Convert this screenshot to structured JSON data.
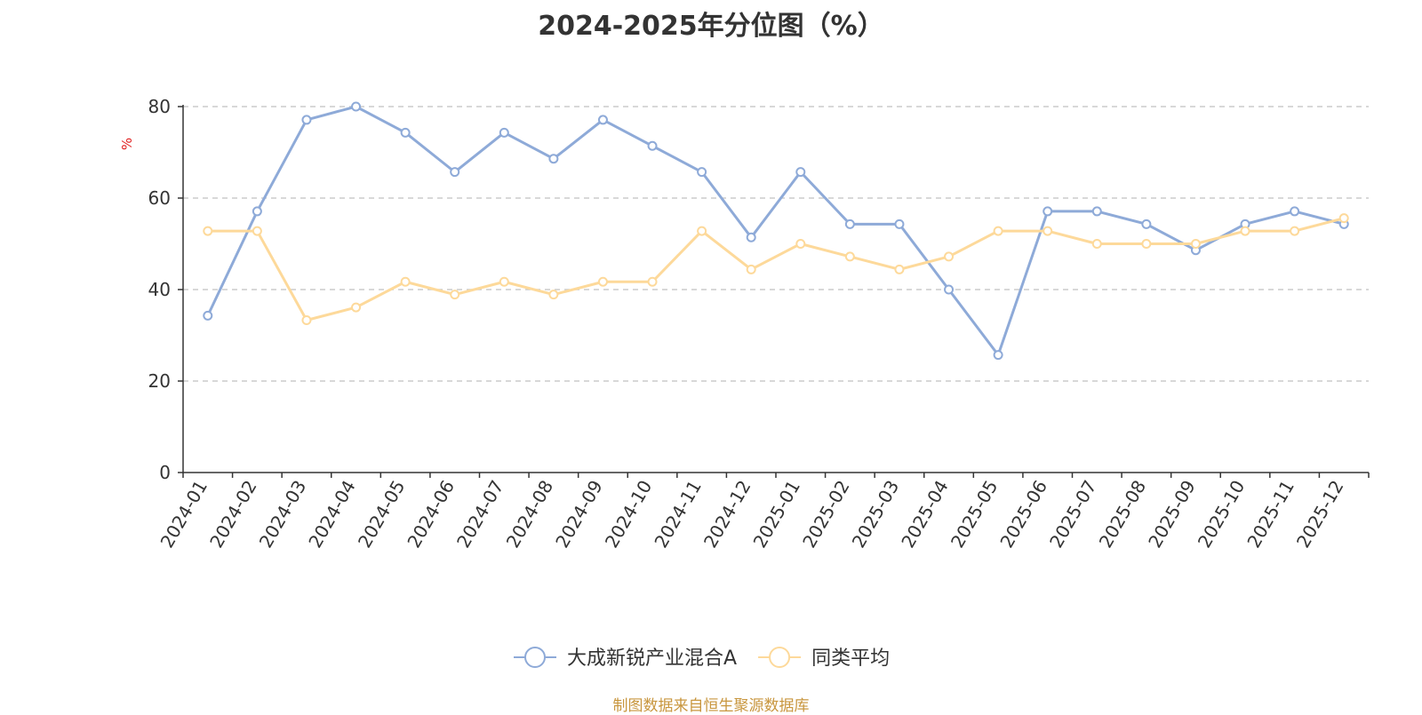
{
  "chart_data": {
    "type": "line",
    "title": "2024-2025年分位图（%）",
    "ylabel": "%",
    "ylim": [
      0,
      80
    ],
    "yticks": [
      0,
      20,
      40,
      60,
      80
    ],
    "grid": true,
    "legend_position": "bottom-center",
    "categories": [
      "2024-01",
      "2024-02",
      "2024-03",
      "2024-04",
      "2024-05",
      "2024-06",
      "2024-07",
      "2024-08",
      "2024-09",
      "2024-10",
      "2024-11",
      "2024-12",
      "2025-01",
      "2025-02",
      "2025-03",
      "2025-04",
      "2025-05",
      "2025-06",
      "2025-07",
      "2025-08",
      "2025-09",
      "2025-10",
      "2025-11",
      "2025-12"
    ],
    "series": [
      {
        "name": "大成新锐产业混合A",
        "color": "#8eaad8",
        "values": [
          34.3,
          57.1,
          77.1,
          80.0,
          74.3,
          65.7,
          74.3,
          68.6,
          77.1,
          71.4,
          65.7,
          51.4,
          65.7,
          54.3,
          54.3,
          40.0,
          25.7,
          57.1,
          57.1,
          54.3,
          48.6,
          54.3,
          57.1,
          54.3
        ]
      },
      {
        "name": "同类平均",
        "color": "#fdd99a",
        "values": [
          52.8,
          52.8,
          33.3,
          36.1,
          41.7,
          38.9,
          41.7,
          38.9,
          41.7,
          41.7,
          52.8,
          44.4,
          50.0,
          47.2,
          44.4,
          47.2,
          52.8,
          52.8,
          50.0,
          50.0,
          50.0,
          52.8,
          52.8,
          55.6
        ]
      }
    ]
  },
  "source_note": "制图数据来自恒生聚源数据库"
}
